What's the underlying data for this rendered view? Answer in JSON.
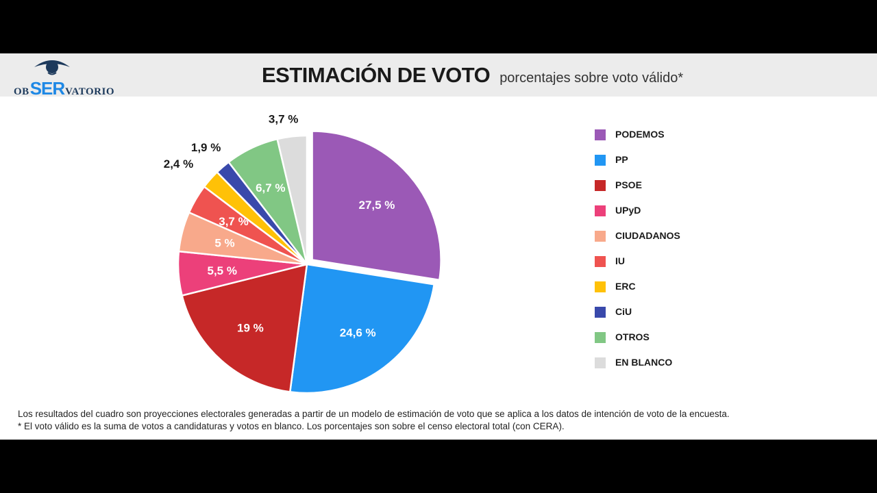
{
  "header": {
    "logo_left": "OB",
    "logo_mid": "SER",
    "logo_right": "VATORIO",
    "title": "ESTIMACIÓN DE VOTO",
    "subtitle": "porcentajes sobre voto válido*"
  },
  "chart_data": {
    "type": "pie",
    "title": "ESTIMACIÓN DE VOTO",
    "subtitle": "porcentajes sobre voto válido*",
    "legend_position": "right",
    "slices": [
      {
        "name": "PODEMOS",
        "value": 27.5,
        "label": "27,5 %",
        "color": "#9b59b6",
        "label_color": "#ffffff",
        "exploded": true
      },
      {
        "name": "PP",
        "value": 24.6,
        "label": "24,6 %",
        "color": "#2196f3",
        "label_color": "#ffffff"
      },
      {
        "name": "PSOE",
        "value": 19,
        "label": "19 %",
        "color": "#c62828",
        "label_color": "#ffffff"
      },
      {
        "name": "UPyD",
        "value": 5.5,
        "label": "5,5 %",
        "color": "#ec407a",
        "label_color": "#ffffff"
      },
      {
        "name": "CIUDADANOS",
        "value": 5,
        "label": "5 %",
        "color": "#f8a98b",
        "label_color": "#ffffff"
      },
      {
        "name": "IU",
        "value": 3.7,
        "label": "3,7 %",
        "color": "#ef5350",
        "label_color": "#ffffff"
      },
      {
        "name": "ERC",
        "value": 2.4,
        "label": "2,4 %",
        "color": "#ffc107",
        "label_color": "#1a1a1a",
        "label_outside": true
      },
      {
        "name": "CiU",
        "value": 1.9,
        "label": "1,9 %",
        "color": "#3949ab",
        "label_color": "#1a1a1a",
        "label_outside": true
      },
      {
        "name": "OTROS",
        "value": 6.7,
        "label": "6,7 %",
        "color": "#81c784",
        "label_color": "#ffffff"
      },
      {
        "name": "EN BLANCO",
        "value": 3.7,
        "label": "3,7 %",
        "color": "#dcdcdc",
        "label_color": "#1a1a1a",
        "label_outside": true
      }
    ]
  },
  "footer": {
    "line1": "Los resultados del cuadro son proyecciones electorales generadas a partir de un modelo de estimación de voto que se aplica a los datos de intención de voto de la encuesta.",
    "line2": "* El voto válido es la suma de votos a candidaturas y votos en blanco. Los porcentajes son sobre el censo electoral total (con CERA)."
  }
}
